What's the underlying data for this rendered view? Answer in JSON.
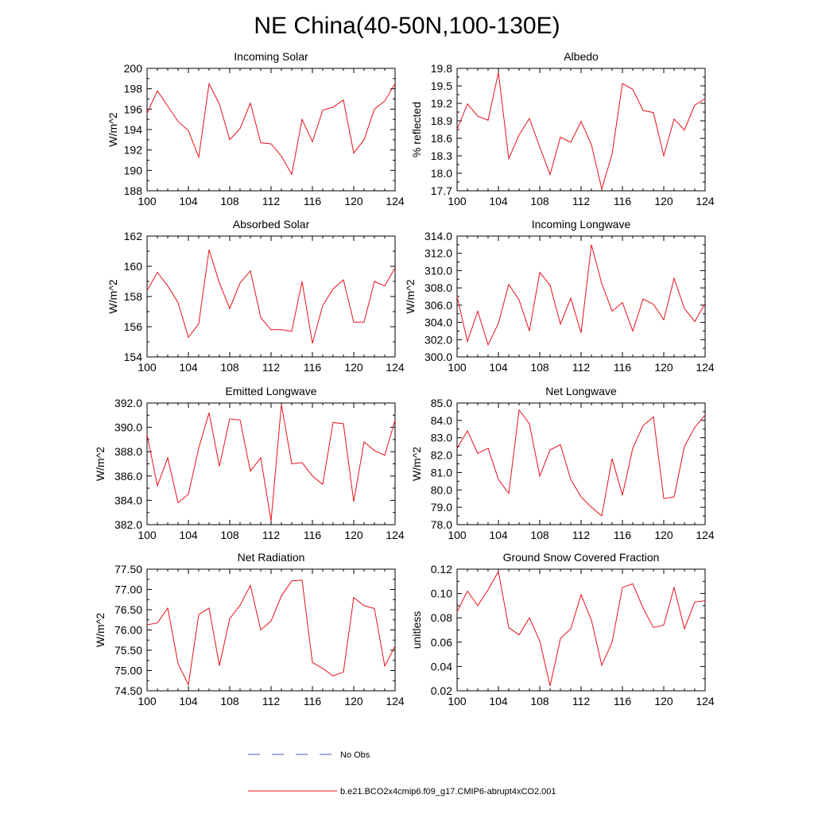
{
  "figure_title": "NE China(40-50N,100-130E)",
  "legend": {
    "obs_label": "No Obs",
    "model_label": "b.e21.BCO2x4cmip6.f09_g17.CMIP6-abrupt4xCO2.001",
    "obs_color": "#3b5bc2",
    "model_color": "#e8101a"
  },
  "chart_data": [
    {
      "type": "line",
      "title": "Incoming Solar",
      "ylabel": "W/m^2",
      "xlabel": "",
      "xlim": [
        100,
        124
      ],
      "ylim": [
        188,
        200
      ],
      "x_ticks": [
        100,
        104,
        108,
        112,
        116,
        120,
        124
      ],
      "x_tick_labels": [
        "100",
        "104",
        "108",
        "112",
        "116",
        "120",
        "124"
      ],
      "y_ticks": [
        188,
        190,
        192,
        194,
        196,
        198,
        200
      ],
      "y_tick_labels": [
        "188",
        "190",
        "192",
        "194",
        "196",
        "198",
        "200"
      ],
      "series": [
        {
          "name": "b.e21.BCO2x4cmip6.f09_g17.CMIP6-abrupt4xCO2.001",
          "x": [
            100,
            101,
            102,
            103,
            104,
            105,
            106,
            107,
            108,
            109,
            110,
            111,
            112,
            113,
            114,
            115,
            116,
            117,
            118,
            119,
            120,
            121,
            122,
            123,
            124
          ],
          "values": [
            195.6,
            197.8,
            196.3,
            194.8,
            193.9,
            191.3,
            198.5,
            196.5,
            193.0,
            194.1,
            196.6,
            192.7,
            192.6,
            191.4,
            189.6,
            195.0,
            192.8,
            195.9,
            196.2,
            196.9,
            191.7,
            193.0,
            196.0,
            196.8,
            198.5
          ]
        }
      ]
    },
    {
      "type": "line",
      "title": "Albedo",
      "ylabel": "% reflected",
      "xlabel": "",
      "xlim": [
        100,
        124
      ],
      "ylim": [
        17.7,
        19.8
      ],
      "x_ticks": [
        100,
        104,
        108,
        112,
        116,
        120,
        124
      ],
      "x_tick_labels": [
        "100",
        "104",
        "108",
        "112",
        "116",
        "120",
        "124"
      ],
      "y_ticks": [
        17.7,
        18.0,
        18.3,
        18.6,
        18.9,
        19.2,
        19.5,
        19.8
      ],
      "y_tick_labels": [
        "17.7",
        "18.0",
        "18.3",
        "18.6",
        "18.9",
        "19.2",
        "19.5",
        "19.8"
      ],
      "series": [
        {
          "name": "b.e21.BCO2x4cmip6.f09_g17.CMIP6-abrupt4xCO2.001",
          "x": [
            100,
            101,
            102,
            103,
            104,
            105,
            106,
            107,
            108,
            109,
            110,
            111,
            112,
            113,
            114,
            115,
            116,
            117,
            118,
            119,
            120,
            121,
            122,
            123,
            124
          ],
          "values": [
            18.75,
            19.19,
            18.98,
            18.91,
            19.73,
            18.25,
            18.66,
            18.94,
            18.45,
            17.98,
            18.62,
            18.53,
            18.89,
            18.49,
            17.73,
            18.33,
            19.54,
            19.44,
            19.08,
            19.04,
            18.3,
            18.93,
            18.74,
            19.17,
            19.28
          ]
        }
      ]
    },
    {
      "type": "line",
      "title": "Absorbed Solar",
      "ylabel": "W/m^2",
      "xlabel": "",
      "xlim": [
        100,
        124
      ],
      "ylim": [
        154,
        162
      ],
      "x_ticks": [
        100,
        104,
        108,
        112,
        116,
        120,
        124
      ],
      "x_tick_labels": [
        "100",
        "104",
        "108",
        "112",
        "116",
        "120",
        "124"
      ],
      "y_ticks": [
        154,
        156,
        158,
        160,
        162
      ],
      "y_tick_labels": [
        "154",
        "156",
        "158",
        "160",
        "162"
      ],
      "series": [
        {
          "name": "b.e21.BCO2x4cmip6.f09_g17.CMIP6-abrupt4xCO2.001",
          "x": [
            100,
            101,
            102,
            103,
            104,
            105,
            106,
            107,
            108,
            109,
            110,
            111,
            112,
            113,
            114,
            115,
            116,
            117,
            118,
            119,
            120,
            121,
            122,
            123,
            124
          ],
          "values": [
            158.4,
            159.6,
            158.7,
            157.6,
            155.3,
            156.2,
            161.1,
            158.9,
            157.2,
            158.9,
            159.7,
            156.6,
            155.8,
            155.8,
            155.7,
            159.0,
            154.9,
            157.4,
            158.5,
            159.1,
            156.3,
            156.3,
            159.0,
            158.7,
            159.9
          ]
        }
      ]
    },
    {
      "type": "line",
      "title": "Incoming Longwave",
      "ylabel": "W/m^2",
      "xlabel": "",
      "xlim": [
        100,
        124
      ],
      "ylim": [
        300,
        314
      ],
      "x_ticks": [
        100,
        104,
        108,
        112,
        116,
        120,
        124
      ],
      "x_tick_labels": [
        "100",
        "104",
        "108",
        "112",
        "116",
        "120",
        "124"
      ],
      "y_ticks": [
        300,
        302,
        304,
        306,
        308,
        310,
        312,
        314
      ],
      "y_tick_labels": [
        "300.0",
        "302.0",
        "304.0",
        "306.0",
        "308.0",
        "310.0",
        "312.0",
        "314.0"
      ],
      "series": [
        {
          "name": "b.e21.BCO2x4cmip6.f09_g17.CMIP6-abrupt4xCO2.001",
          "x": [
            100,
            101,
            102,
            103,
            104,
            105,
            106,
            107,
            108,
            109,
            110,
            111,
            112,
            113,
            114,
            115,
            116,
            117,
            118,
            119,
            120,
            121,
            122,
            123,
            124
          ],
          "values": [
            307.0,
            301.8,
            305.3,
            301.4,
            303.9,
            308.4,
            306.6,
            303.0,
            309.8,
            308.3,
            303.8,
            306.8,
            302.8,
            313.0,
            308.5,
            305.3,
            306.3,
            303.0,
            306.7,
            306.1,
            304.3,
            309.1,
            305.6,
            304.1,
            306.2
          ]
        }
      ]
    },
    {
      "type": "line",
      "title": "Emitted Longwave",
      "ylabel": "W/m^2",
      "xlabel": "",
      "xlim": [
        100,
        124
      ],
      "ylim": [
        382,
        392
      ],
      "x_ticks": [
        100,
        104,
        108,
        112,
        116,
        120,
        124
      ],
      "x_tick_labels": [
        "100",
        "104",
        "108",
        "112",
        "116",
        "120",
        "124"
      ],
      "y_ticks": [
        382,
        384,
        386,
        388,
        390,
        392
      ],
      "y_tick_labels": [
        "382.0",
        "384.0",
        "386.0",
        "388.0",
        "390.0",
        "392.0"
      ],
      "series": [
        {
          "name": "b.e21.BCO2x4cmip6.f09_g17.CMIP6-abrupt4xCO2.001",
          "x": [
            100,
            101,
            102,
            103,
            104,
            105,
            106,
            107,
            108,
            109,
            110,
            111,
            112,
            113,
            114,
            115,
            116,
            117,
            118,
            119,
            120,
            121,
            122,
            123,
            124
          ],
          "values": [
            389.4,
            385.2,
            387.5,
            383.8,
            384.5,
            388.3,
            391.2,
            386.8,
            390.7,
            390.6,
            386.4,
            387.5,
            382.3,
            391.9,
            387.0,
            387.1,
            386.0,
            385.3,
            390.4,
            390.3,
            383.9,
            388.8,
            388.1,
            387.7,
            390.6
          ]
        }
      ]
    },
    {
      "type": "line",
      "title": "Net Longwave",
      "ylabel": "W/m^2",
      "xlabel": "",
      "xlim": [
        100,
        124
      ],
      "ylim": [
        78,
        85
      ],
      "x_ticks": [
        100,
        104,
        108,
        112,
        116,
        120,
        124
      ],
      "x_tick_labels": [
        "100",
        "104",
        "108",
        "112",
        "116",
        "120",
        "124"
      ],
      "y_ticks": [
        78,
        79,
        80,
        81,
        82,
        83,
        84,
        85
      ],
      "y_tick_labels": [
        "78.0",
        "79.0",
        "80.0",
        "81.0",
        "82.0",
        "83.0",
        "84.0",
        "85.0"
      ],
      "series": [
        {
          "name": "b.e21.BCO2x4cmip6.f09_g17.CMIP6-abrupt4xCO2.001",
          "x": [
            100,
            101,
            102,
            103,
            104,
            105,
            106,
            107,
            108,
            109,
            110,
            111,
            112,
            113,
            114,
            115,
            116,
            117,
            118,
            119,
            120,
            121,
            122,
            123,
            124
          ],
          "values": [
            82.4,
            83.4,
            82.1,
            82.4,
            80.6,
            79.8,
            84.6,
            83.8,
            80.8,
            82.3,
            82.6,
            80.6,
            79.6,
            79.0,
            78.5,
            81.8,
            79.7,
            82.4,
            83.7,
            84.2,
            79.5,
            79.6,
            82.5,
            83.6,
            84.3
          ]
        }
      ]
    },
    {
      "type": "line",
      "title": "Net Radiation",
      "ylabel": "W/m^2",
      "xlabel": "",
      "xlim": [
        100,
        124
      ],
      "ylim": [
        74.5,
        77.5
      ],
      "x_ticks": [
        100,
        104,
        108,
        112,
        116,
        120,
        124
      ],
      "x_tick_labels": [
        "100",
        "104",
        "108",
        "112",
        "116",
        "120",
        "124"
      ],
      "y_ticks": [
        74.5,
        75.0,
        75.5,
        76.0,
        76.5,
        77.0,
        77.5
      ],
      "y_tick_labels": [
        "74.50",
        "75.00",
        "75.50",
        "76.00",
        "76.50",
        "77.00",
        "77.50"
      ],
      "series": [
        {
          "name": "b.e21.BCO2x4cmip6.f09_g17.CMIP6-abrupt4xCO2.001",
          "x": [
            100,
            101,
            102,
            103,
            104,
            105,
            106,
            107,
            108,
            109,
            110,
            111,
            112,
            113,
            114,
            115,
            116,
            117,
            118,
            119,
            120,
            121,
            122,
            123,
            124
          ],
          "values": [
            76.13,
            76.17,
            76.54,
            75.17,
            74.65,
            76.38,
            76.54,
            75.12,
            76.28,
            76.61,
            77.1,
            76.0,
            76.22,
            76.84,
            77.21,
            77.23,
            75.2,
            75.05,
            74.87,
            74.96,
            76.8,
            76.6,
            76.53,
            75.11,
            75.6
          ]
        }
      ]
    },
    {
      "type": "line",
      "title": "Ground Snow Covered Fraction",
      "ylabel": "unitless",
      "xlabel": "",
      "xlim": [
        100,
        124
      ],
      "ylim": [
        0.02,
        0.12
      ],
      "x_ticks": [
        100,
        104,
        108,
        112,
        116,
        120,
        124
      ],
      "x_tick_labels": [
        "100",
        "104",
        "108",
        "112",
        "116",
        "120",
        "124"
      ],
      "y_ticks": [
        0.02,
        0.04,
        0.06,
        0.08,
        0.1,
        0.12
      ],
      "y_tick_labels": [
        "0.02",
        "0.04",
        "0.06",
        "0.08",
        "0.10",
        "0.12"
      ],
      "series": [
        {
          "name": "b.e21.BCO2x4cmip6.f09_g17.CMIP6-abrupt4xCO2.001",
          "x": [
            100,
            101,
            102,
            103,
            104,
            105,
            106,
            107,
            108,
            109,
            110,
            111,
            112,
            113,
            114,
            115,
            116,
            117,
            118,
            119,
            120,
            121,
            122,
            123,
            124
          ],
          "values": [
            0.085,
            0.102,
            0.09,
            0.103,
            0.118,
            0.072,
            0.066,
            0.08,
            0.061,
            0.024,
            0.063,
            0.071,
            0.099,
            0.078,
            0.041,
            0.06,
            0.105,
            0.108,
            0.088,
            0.072,
            0.074,
            0.105,
            0.071,
            0.093,
            0.094
          ]
        }
      ]
    }
  ]
}
